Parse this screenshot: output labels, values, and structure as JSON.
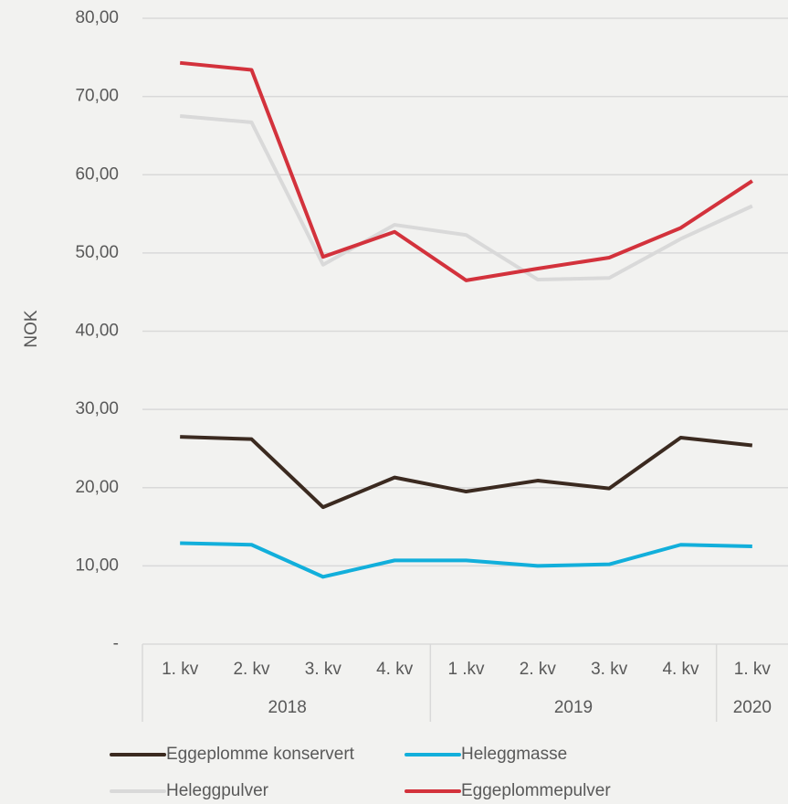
{
  "chart_data": {
    "type": "line",
    "y_label": "NOK",
    "categories": [
      "1. kv",
      "2. kv",
      "3. kv",
      "4. kv",
      "1 .kv",
      "2. kv",
      "3. kv",
      "4. kv",
      "1. kv"
    ],
    "x_groups": [
      {
        "label": "2018",
        "count": 4
      },
      {
        "label": "2019",
        "count": 4
      },
      {
        "label": "2020",
        "count": 1
      }
    ],
    "series": [
      {
        "name": "Eggeplomme konservert",
        "color": "#3b2a20",
        "values": [
          26.5,
          26.2,
          17.5,
          21.3,
          19.5,
          20.9,
          19.9,
          26.4,
          25.4
        ]
      },
      {
        "name": "Heleggmasse",
        "color": "#12afdb",
        "values": [
          12.9,
          12.7,
          8.6,
          10.7,
          10.7,
          10.0,
          10.2,
          12.7,
          12.5
        ]
      },
      {
        "name": "Heleggpulver",
        "color": "#d9d9d9",
        "values": [
          67.5,
          66.7,
          48.5,
          53.6,
          52.3,
          46.6,
          46.8,
          51.8,
          56.0
        ]
      },
      {
        "name": "Eggeplommepulver",
        "color": "#d3323c",
        "values": [
          74.3,
          73.4,
          49.5,
          52.7,
          46.5,
          48.0,
          49.4,
          53.2,
          59.2
        ]
      }
    ],
    "ylim": [
      0,
      80
    ],
    "yticks": [
      {
        "value": 0,
        "label": "-"
      },
      {
        "value": 10,
        "label": "10,00"
      },
      {
        "value": 20,
        "label": "20,00"
      },
      {
        "value": 30,
        "label": "30,00"
      },
      {
        "value": 40,
        "label": "40,00"
      },
      {
        "value": 50,
        "label": "50,00"
      },
      {
        "value": 60,
        "label": "60,00"
      },
      {
        "value": 70,
        "label": "70,00"
      },
      {
        "value": 80,
        "label": "80,00"
      }
    ],
    "grid": true,
    "legend": "bottom"
  }
}
